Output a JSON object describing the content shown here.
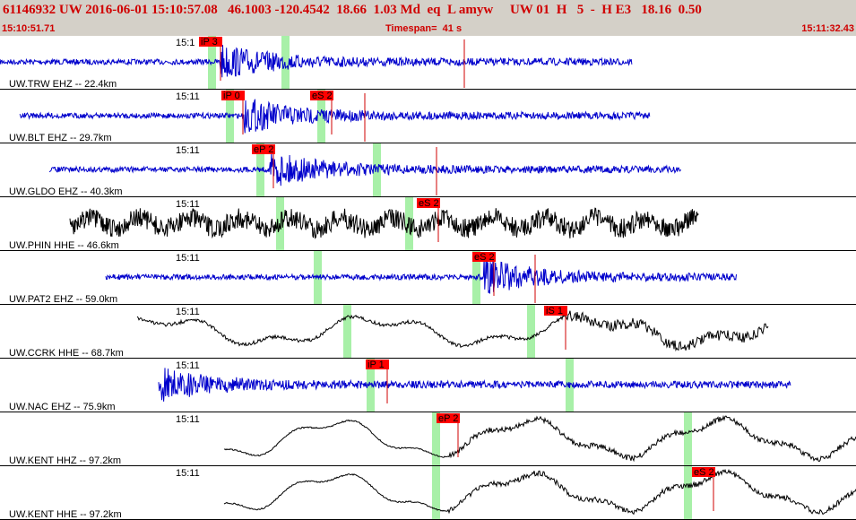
{
  "header": {
    "event_line": "61146932 UW 2016-06-01 15:10:57.08   46.1003 -120.4542  18.66  1.03 Md  eq  L amyw     UW 01  H   5  -  H E3   18.16  0.50",
    "start_time": "15:10:51.71",
    "timespan": "Timespan=  41 s",
    "end_time": "15:11:32.43"
  },
  "traces": [
    {
      "time_label": "15:1",
      "station": "UW.TRW EHZ -- 22.4km",
      "color": "#0000cc",
      "picks": [
        "iP 3"
      ]
    },
    {
      "time_label": "15:11",
      "station": "UW.BLT EHZ -- 29.7km",
      "color": "#0000cc",
      "picks": [
        "iP 0",
        "eS 2"
      ]
    },
    {
      "time_label": "15:11",
      "station": "UW.GLDO EHZ -- 40.3km",
      "color": "#0000cc",
      "picks": [
        "eP 2"
      ]
    },
    {
      "time_label": "15:11",
      "station": "UW.PHIN HHE -- 46.6km",
      "color": "#000000",
      "picks": [
        "eS 2"
      ]
    },
    {
      "time_label": "15:11",
      "station": "UW.PAT2 EHZ -- 59.0km",
      "color": "#0000cc",
      "picks": [
        "eS 2"
      ]
    },
    {
      "time_label": "15:11",
      "station": "UW.CCRK HHE -- 68.7km",
      "color": "#000000",
      "picks": [
        "iS 1"
      ]
    },
    {
      "time_label": "15:11",
      "station": "UW.NAC EHZ -- 75.9km",
      "color": "#0000cc",
      "picks": [
        "iP 1"
      ]
    },
    {
      "time_label": "15:11",
      "station": "UW.KENT HHZ -- 97.2km",
      "color": "#000000",
      "picks": [
        "eP 2"
      ]
    },
    {
      "time_label": "15:11",
      "station": "UW.KENT HHE -- 97.2km",
      "color": "#000000",
      "picks": [
        "eS 2"
      ]
    }
  ]
}
